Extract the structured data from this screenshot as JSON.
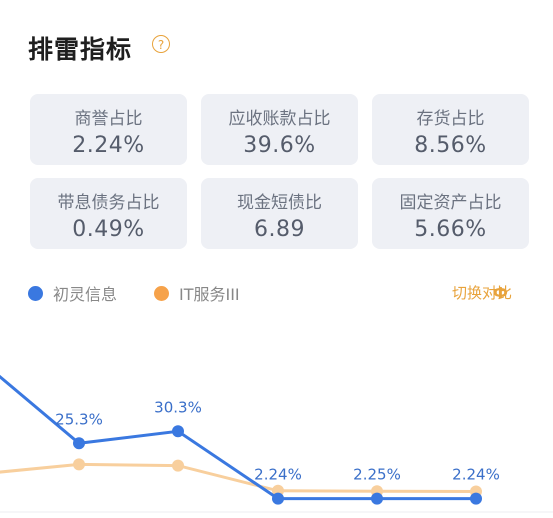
{
  "header": {
    "title": "排雷指标",
    "help_icon": "?"
  },
  "cards": [
    {
      "label": "商誉占比",
      "value": "2.24%",
      "active": true
    },
    {
      "label": "应收账款占比",
      "value": "39.6%",
      "active": false
    },
    {
      "label": "存货占比",
      "value": "8.56%",
      "active": false
    },
    {
      "label": "带息债务占比",
      "value": "0.49%",
      "active": false
    },
    {
      "label": "现金短债比",
      "value": "6.89",
      "active": false
    },
    {
      "label": "固定资产占比",
      "value": "5.66%",
      "active": false
    }
  ],
  "legend": {
    "series1": {
      "label": "初灵信息",
      "color": "#3a78e0"
    },
    "series2": {
      "label": "IT服务III",
      "color": "#f6a24a"
    }
  },
  "switch": {
    "label": "切换对比",
    "icon": "Ф"
  },
  "chart_data": {
    "type": "line",
    "series": [
      {
        "name": "初灵信息",
        "color": "#3a78e0",
        "values": [
          null,
          25.3,
          30.3,
          2.24,
          2.25,
          2.24
        ],
        "labels": [
          "",
          "25.3%",
          "30.3%",
          "2.24%",
          "2.25%",
          "2.24%"
        ]
      },
      {
        "name": "IT服务III",
        "color": "#f8cf9d",
        "values": [
          null,
          16.5,
          16.0,
          5.5,
          5.3,
          5.2
        ],
        "labels": [
          "",
          "",
          "",
          "",
          "",
          ""
        ]
      }
    ]
  }
}
